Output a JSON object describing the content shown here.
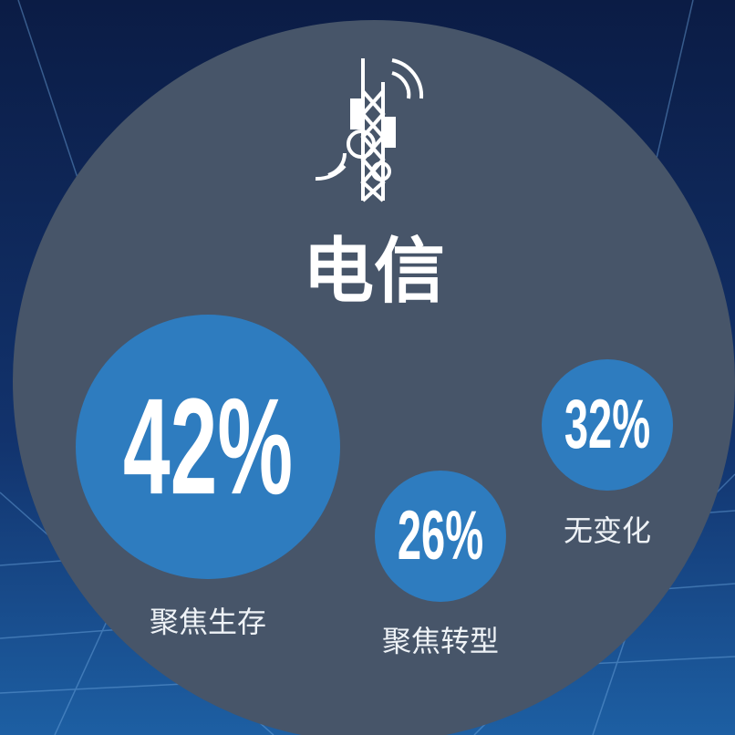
{
  "title": "电信",
  "items": [
    {
      "value": "42%",
      "label": "聚焦生存"
    },
    {
      "value": "26%",
      "label": "聚焦转型"
    },
    {
      "value": "32%",
      "label": "无变化"
    }
  ]
}
